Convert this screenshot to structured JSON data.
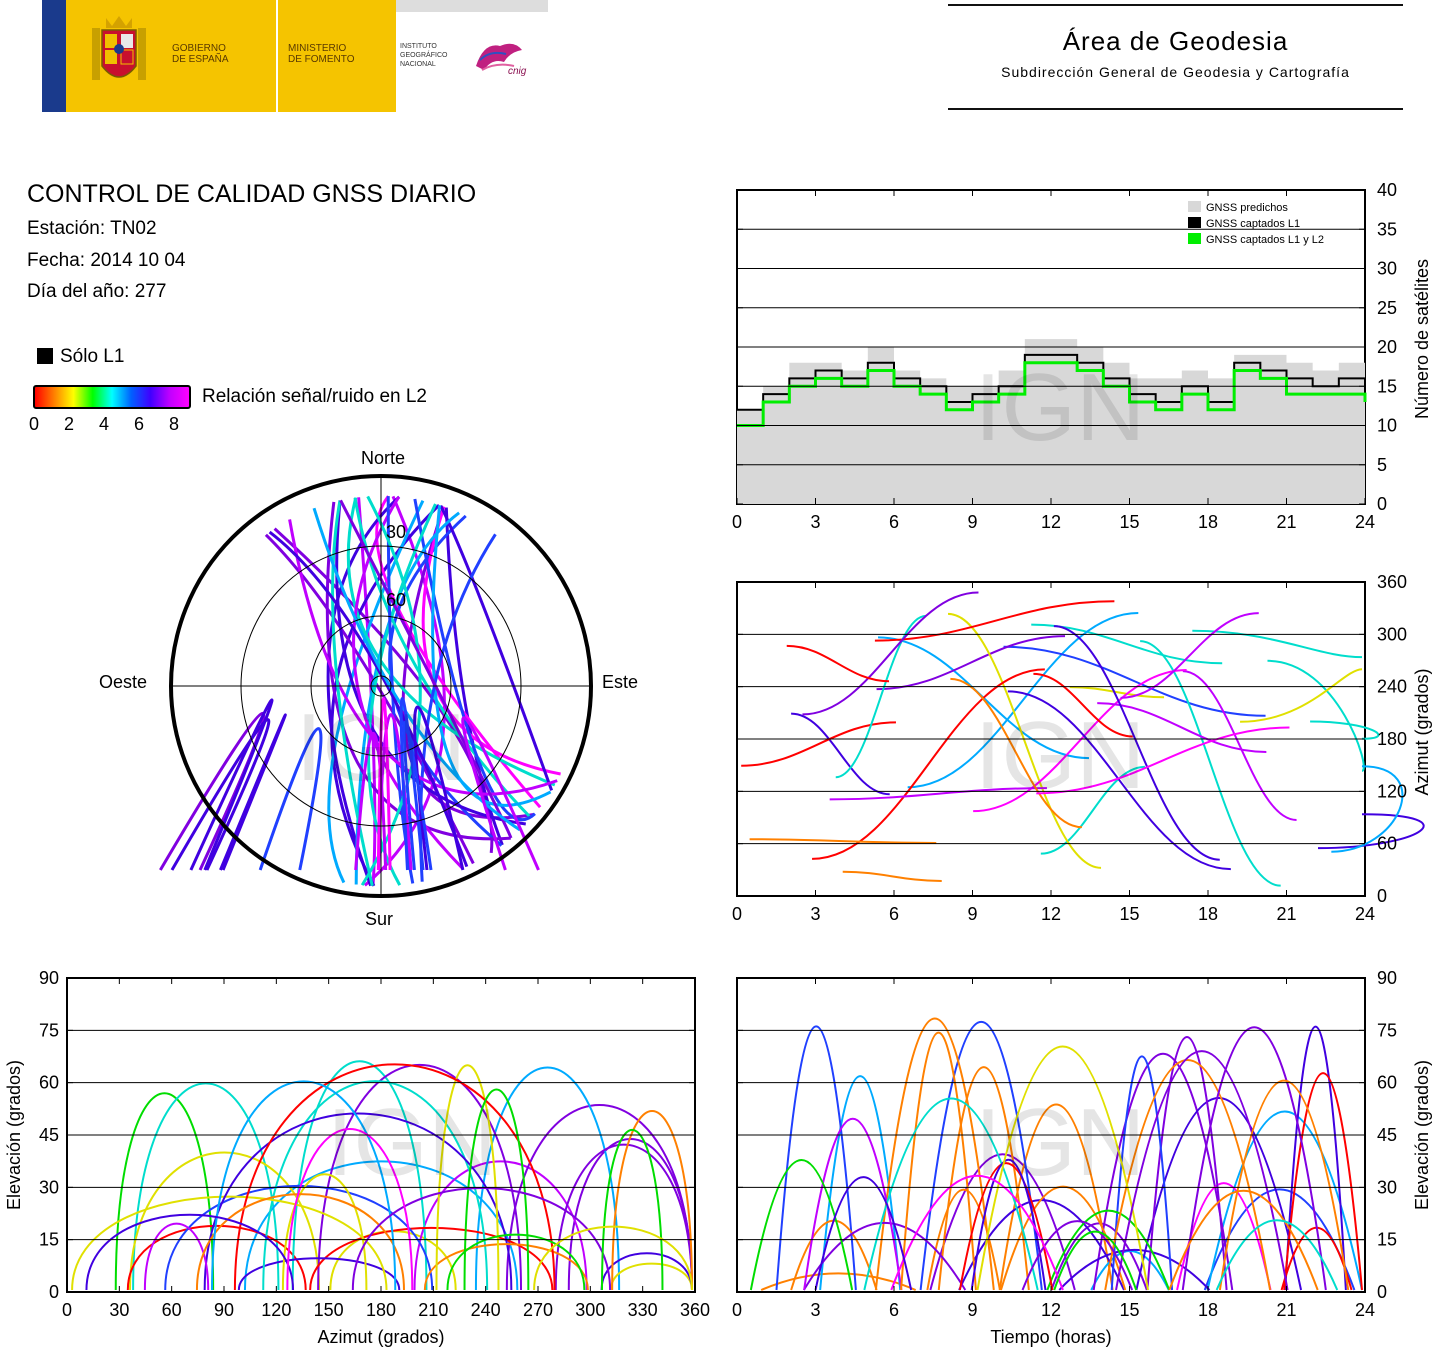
{
  "header": {
    "gov_line1": "GOBIERNO",
    "gov_line2": "DE ESPAÑA",
    "min_line1": "MINISTERIO",
    "min_line2": "DE FOMENTO",
    "ign_line1": "INSTITUTO",
    "ign_line2": "GEOGRÁFICO",
    "ign_line3": "NACIONAL",
    "cnig": "cnig",
    "area_title": "Área de Geodesia",
    "area_subtitle": "Subdirección General de Geodesia y Cartografía"
  },
  "info": {
    "title": "CONTROL DE CALIDAD GNSS DIARIO",
    "station": "Estación: TN02",
    "date": "Fecha: 2014 10 04",
    "doy": "Día del año: 277"
  },
  "legend": {
    "only_l1": "Sólo L1",
    "snr_label": "Relación señal/ruido en L2",
    "snr_ticks": [
      "0",
      "2",
      "4",
      "6",
      "8"
    ],
    "colors": {
      "low": "#ff0000",
      "mid1": "#ffff00",
      "mid2": "#00ff00",
      "mid3": "#00ffff",
      "mid4": "#0000ff",
      "high": "#ff00ff"
    }
  },
  "watermark": "IGN",
  "chart_data": [
    {
      "id": "satellite_count",
      "type": "area",
      "ylabel": "Número de satélites",
      "xticks": [
        "0",
        "3",
        "6",
        "9",
        "12",
        "15",
        "18",
        "21",
        "24"
      ],
      "yticks": [
        "0",
        "5",
        "10",
        "15",
        "20",
        "25",
        "30",
        "35",
        "40"
      ],
      "xlim": [
        0,
        24
      ],
      "ylim": [
        0,
        40
      ],
      "legend": [
        "GNSS predichos",
        "GNSS captados L1",
        "GNSS captados L1 y L2"
      ],
      "series": [
        {
          "name": "GNSS predichos",
          "color": "#d8d8d8",
          "x": [
            0,
            1,
            2,
            3,
            4,
            5,
            6,
            7,
            8,
            9,
            10,
            11,
            12,
            13,
            14,
            15,
            16,
            17,
            18,
            19,
            20,
            21,
            22,
            23,
            24
          ],
          "values": [
            12,
            15,
            18,
            18,
            17,
            20,
            17,
            16,
            15,
            15,
            17,
            21,
            21,
            20,
            18,
            16,
            16,
            17,
            16,
            19,
            19,
            18,
            17,
            18,
            16
          ]
        },
        {
          "name": "GNSS captados L1",
          "color": "#000000",
          "x": [
            0,
            1,
            2,
            3,
            4,
            5,
            6,
            7,
            8,
            9,
            10,
            11,
            12,
            13,
            14,
            15,
            16,
            17,
            18,
            19,
            20,
            21,
            22,
            23,
            24
          ],
          "values": [
            12,
            14,
            16,
            17,
            16,
            18,
            16,
            15,
            13,
            14,
            15,
            19,
            19,
            18,
            16,
            14,
            13,
            15,
            13,
            18,
            17,
            16,
            15,
            16,
            14
          ]
        },
        {
          "name": "GNSS captados L1 y L2",
          "color": "#00ee00",
          "x": [
            0,
            1,
            2,
            3,
            4,
            5,
            6,
            7,
            8,
            9,
            10,
            11,
            12,
            13,
            14,
            15,
            16,
            17,
            18,
            19,
            20,
            21,
            22,
            23,
            24
          ],
          "values": [
            10,
            13,
            15,
            16,
            15,
            17,
            15,
            14,
            12,
            13,
            14,
            18,
            18,
            17,
            15,
            13,
            12,
            14,
            12,
            17,
            16,
            14,
            14,
            14,
            13
          ]
        }
      ]
    },
    {
      "id": "azimuth_time",
      "type": "scatter",
      "ylabel": "Azimut (grados)",
      "xticks": [
        "0",
        "3",
        "6",
        "9",
        "12",
        "15",
        "18",
        "21",
        "24"
      ],
      "yticks": [
        "0",
        "60",
        "120",
        "180",
        "240",
        "300",
        "360"
      ],
      "xlim": [
        0,
        24
      ],
      "ylim": [
        0,
        360
      ]
    },
    {
      "id": "skyplot",
      "type": "scatter",
      "labels": {
        "north": "Norte",
        "south": "Sur",
        "east": "Este",
        "west": "Oeste",
        "r30": "30",
        "r60": "60"
      }
    },
    {
      "id": "elev_azimuth",
      "type": "scatter",
      "xlabel": "Azimut (grados)",
      "ylabel": "Elevación (grados)",
      "xticks": [
        "0",
        "30",
        "60",
        "90",
        "120",
        "150",
        "180",
        "210",
        "240",
        "270",
        "300",
        "330",
        "360"
      ],
      "yticks": [
        "0",
        "15",
        "30",
        "45",
        "60",
        "75",
        "90"
      ],
      "xlim": [
        0,
        360
      ],
      "ylim": [
        0,
        90
      ]
    },
    {
      "id": "elev_time",
      "type": "scatter",
      "xlabel": "Tiempo (horas)",
      "ylabel": "Elevación (grados)",
      "xticks": [
        "0",
        "3",
        "6",
        "9",
        "12",
        "15",
        "18",
        "21",
        "24"
      ],
      "yticks": [
        "0",
        "15",
        "30",
        "45",
        "60",
        "75",
        "90"
      ],
      "xlim": [
        0,
        24
      ],
      "ylim": [
        0,
        90
      ]
    }
  ]
}
